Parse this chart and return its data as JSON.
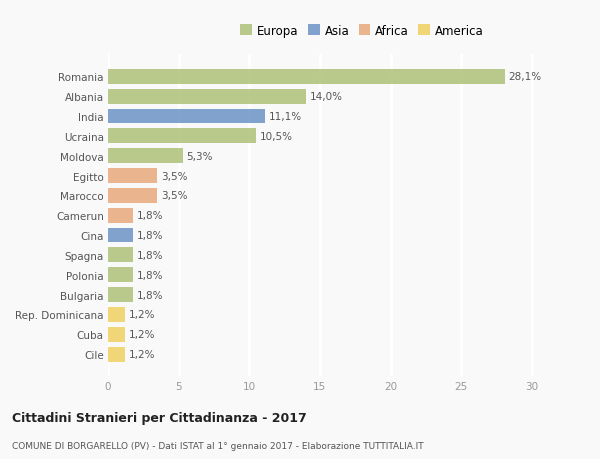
{
  "countries": [
    "Romania",
    "Albania",
    "India",
    "Ucraina",
    "Moldova",
    "Egitto",
    "Marocco",
    "Camerun",
    "Cina",
    "Spagna",
    "Polonia",
    "Bulgaria",
    "Rep. Dominicana",
    "Cuba",
    "Cile"
  ],
  "values": [
    28.1,
    14.0,
    11.1,
    10.5,
    5.3,
    3.5,
    3.5,
    1.8,
    1.8,
    1.8,
    1.8,
    1.8,
    1.2,
    1.2,
    1.2
  ],
  "labels": [
    "28,1%",
    "14,0%",
    "11,1%",
    "10,5%",
    "5,3%",
    "3,5%",
    "3,5%",
    "1,8%",
    "1,8%",
    "1,8%",
    "1,8%",
    "1,8%",
    "1,2%",
    "1,2%",
    "1,2%"
  ],
  "continents": [
    "Europa",
    "Europa",
    "Asia",
    "Europa",
    "Europa",
    "Africa",
    "Africa",
    "Africa",
    "Asia",
    "Europa",
    "Europa",
    "Europa",
    "America",
    "America",
    "America"
  ],
  "continent_colors": {
    "Europa": "#adc178",
    "Asia": "#6b93c4",
    "Africa": "#e8a87c",
    "America": "#f0d060"
  },
  "legend_items": [
    "Europa",
    "Asia",
    "Africa",
    "America"
  ],
  "legend_colors": [
    "#adc178",
    "#6b93c4",
    "#e8a87c",
    "#f0d060"
  ],
  "xlim": [
    0,
    31
  ],
  "xticks": [
    0,
    5,
    10,
    15,
    20,
    25,
    30
  ],
  "title": "Cittadini Stranieri per Cittadinanza - 2017",
  "subtitle": "COMUNE DI BORGARELLO (PV) - Dati ISTAT al 1° gennaio 2017 - Elaborazione TUTTITALIA.IT",
  "background_color": "#f9f9f9",
  "grid_color": "#ffffff",
  "bar_height": 0.75,
  "label_fontsize": 7.5,
  "tick_fontsize": 7.5,
  "title_fontsize": 9,
  "subtitle_fontsize": 6.5
}
